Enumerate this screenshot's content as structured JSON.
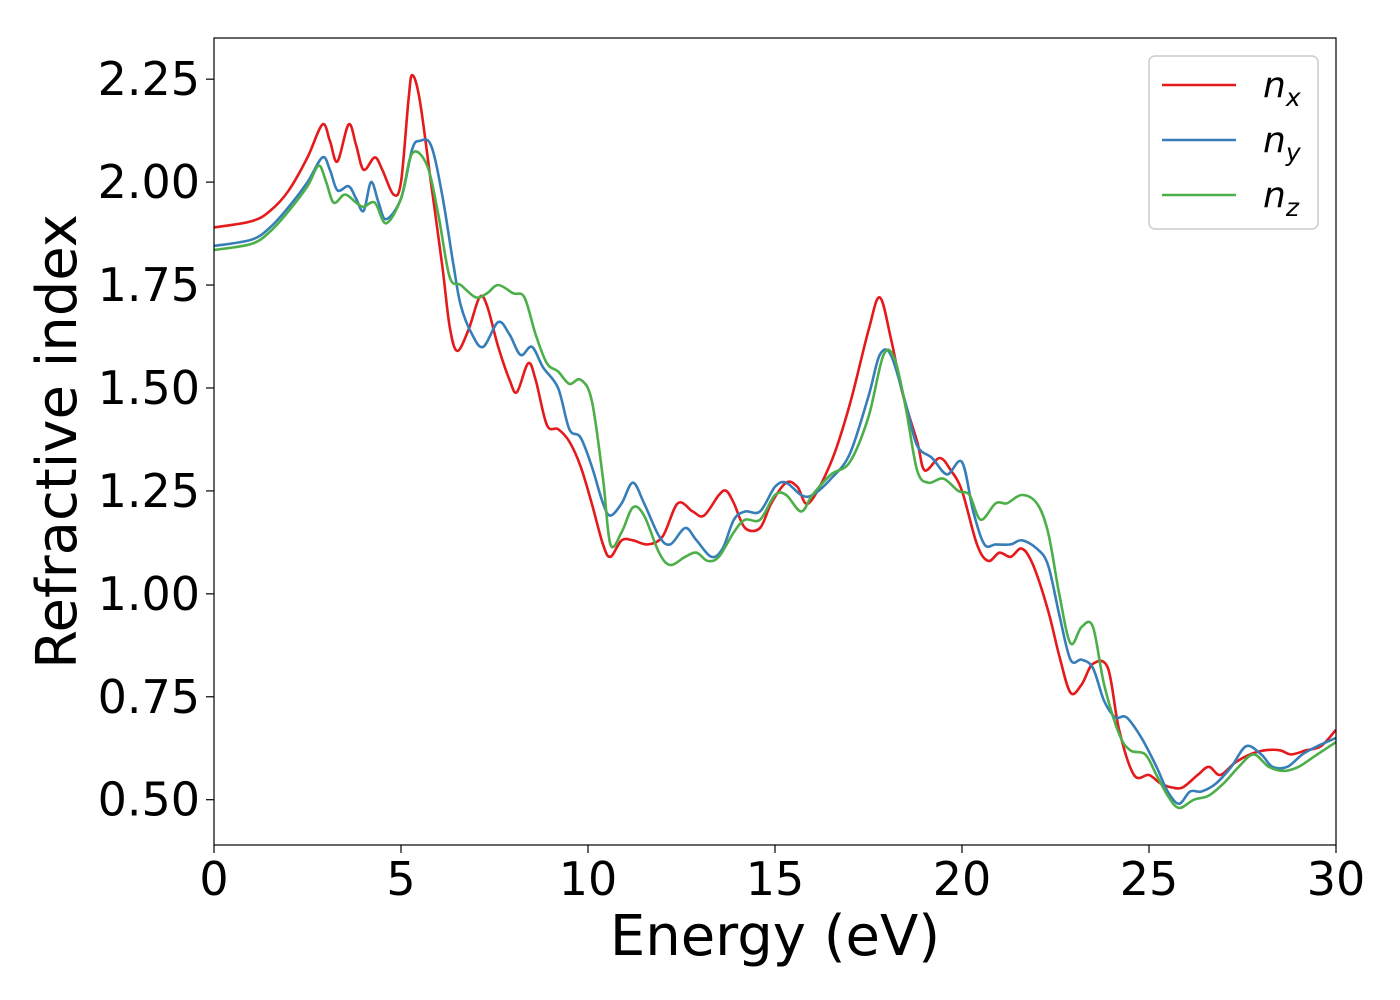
{
  "chart_data": {
    "type": "line",
    "title": "",
    "xlabel": "Energy (eV)",
    "ylabel": "Refractive index",
    "xlim": [
      0,
      30
    ],
    "ylim": [
      0.39,
      2.35
    ],
    "xticks": [
      0,
      5,
      10,
      15,
      20,
      25,
      30
    ],
    "yticks": [
      0.5,
      0.75,
      1.0,
      1.25,
      1.5,
      1.75,
      2.0,
      2.25
    ],
    "xtick_labels": [
      "0",
      "5",
      "10",
      "15",
      "20",
      "25",
      "30"
    ],
    "ytick_labels": [
      "0.50",
      "0.75",
      "1.00",
      "1.25",
      "1.50",
      "1.75",
      "2.00",
      "2.25"
    ],
    "grid": false,
    "legend_position": "top-right",
    "series": [
      {
        "name": "n",
        "subscript": "x",
        "color": "#e41a1c",
        "points": [
          [
            0,
            1.89
          ],
          [
            1,
            1.905
          ],
          [
            1.5,
            1.93
          ],
          [
            2,
            1.98
          ],
          [
            2.5,
            2.06
          ],
          [
            2.9,
            2.14
          ],
          [
            3.1,
            2.1
          ],
          [
            3.3,
            2.05
          ],
          [
            3.6,
            2.14
          ],
          [
            3.8,
            2.09
          ],
          [
            4.0,
            2.03
          ],
          [
            4.3,
            2.06
          ],
          [
            4.5,
            2.03
          ],
          [
            4.8,
            1.97
          ],
          [
            5.0,
            2.0
          ],
          [
            5.2,
            2.2
          ],
          [
            5.3,
            2.26
          ],
          [
            5.5,
            2.2
          ],
          [
            5.8,
            2.0
          ],
          [
            6.1,
            1.8
          ],
          [
            6.3,
            1.65
          ],
          [
            6.5,
            1.59
          ],
          [
            6.8,
            1.64
          ],
          [
            7.1,
            1.72
          ],
          [
            7.3,
            1.7
          ],
          [
            7.6,
            1.6
          ],
          [
            7.9,
            1.52
          ],
          [
            8.1,
            1.49
          ],
          [
            8.4,
            1.56
          ],
          [
            8.6,
            1.52
          ],
          [
            8.9,
            1.41
          ],
          [
            9.2,
            1.4
          ],
          [
            9.5,
            1.37
          ],
          [
            9.8,
            1.31
          ],
          [
            10.1,
            1.22
          ],
          [
            10.4,
            1.12
          ],
          [
            10.6,
            1.09
          ],
          [
            10.9,
            1.13
          ],
          [
            11.2,
            1.13
          ],
          [
            11.6,
            1.12
          ],
          [
            12.0,
            1.14
          ],
          [
            12.4,
            1.22
          ],
          [
            12.8,
            1.2
          ],
          [
            13.1,
            1.19
          ],
          [
            13.5,
            1.24
          ],
          [
            13.7,
            1.25
          ],
          [
            13.9,
            1.22
          ],
          [
            14.2,
            1.16
          ],
          [
            14.6,
            1.16
          ],
          [
            14.9,
            1.22
          ],
          [
            15.3,
            1.27
          ],
          [
            15.6,
            1.26
          ],
          [
            15.9,
            1.22
          ],
          [
            16.5,
            1.32
          ],
          [
            17.0,
            1.46
          ],
          [
            17.5,
            1.64
          ],
          [
            17.8,
            1.72
          ],
          [
            18.1,
            1.62
          ],
          [
            18.4,
            1.49
          ],
          [
            18.8,
            1.37
          ],
          [
            19.0,
            1.3
          ],
          [
            19.4,
            1.33
          ],
          [
            19.7,
            1.3
          ],
          [
            20.0,
            1.25
          ],
          [
            20.4,
            1.12
          ],
          [
            20.7,
            1.08
          ],
          [
            21.0,
            1.1
          ],
          [
            21.3,
            1.09
          ],
          [
            21.6,
            1.11
          ],
          [
            21.9,
            1.07
          ],
          [
            22.3,
            0.96
          ],
          [
            22.6,
            0.85
          ],
          [
            22.9,
            0.76
          ],
          [
            23.2,
            0.78
          ],
          [
            23.5,
            0.83
          ],
          [
            23.9,
            0.82
          ],
          [
            24.2,
            0.67
          ],
          [
            24.6,
            0.56
          ],
          [
            25.0,
            0.56
          ],
          [
            25.3,
            0.54
          ],
          [
            25.6,
            0.53
          ],
          [
            25.9,
            0.53
          ],
          [
            26.3,
            0.56
          ],
          [
            26.6,
            0.58
          ],
          [
            26.9,
            0.56
          ],
          [
            27.3,
            0.59
          ],
          [
            27.7,
            0.61
          ],
          [
            28.1,
            0.62
          ],
          [
            28.5,
            0.62
          ],
          [
            28.8,
            0.61
          ],
          [
            29.2,
            0.62
          ],
          [
            29.6,
            0.63
          ],
          [
            30,
            0.67
          ]
        ]
      },
      {
        "name": "n",
        "subscript": "y",
        "color": "#377eb8",
        "points": [
          [
            0,
            1.845
          ],
          [
            1,
            1.86
          ],
          [
            1.5,
            1.89
          ],
          [
            2,
            1.94
          ],
          [
            2.5,
            2.0
          ],
          [
            2.9,
            2.06
          ],
          [
            3.1,
            2.03
          ],
          [
            3.3,
            1.98
          ],
          [
            3.6,
            1.99
          ],
          [
            3.8,
            1.96
          ],
          [
            4.0,
            1.93
          ],
          [
            4.2,
            2.0
          ],
          [
            4.4,
            1.95
          ],
          [
            4.6,
            1.91
          ],
          [
            5.0,
            1.96
          ],
          [
            5.3,
            2.08
          ],
          [
            5.5,
            2.1
          ],
          [
            5.8,
            2.09
          ],
          [
            6.1,
            1.97
          ],
          [
            6.4,
            1.8
          ],
          [
            6.6,
            1.7
          ],
          [
            6.9,
            1.63
          ],
          [
            7.2,
            1.6
          ],
          [
            7.6,
            1.66
          ],
          [
            7.9,
            1.63
          ],
          [
            8.2,
            1.58
          ],
          [
            8.5,
            1.6
          ],
          [
            8.8,
            1.55
          ],
          [
            9.2,
            1.5
          ],
          [
            9.5,
            1.4
          ],
          [
            9.8,
            1.38
          ],
          [
            10.1,
            1.31
          ],
          [
            10.4,
            1.22
          ],
          [
            10.6,
            1.19
          ],
          [
            10.9,
            1.22
          ],
          [
            11.2,
            1.27
          ],
          [
            11.5,
            1.22
          ],
          [
            11.9,
            1.14
          ],
          [
            12.2,
            1.12
          ],
          [
            12.6,
            1.16
          ],
          [
            12.9,
            1.13
          ],
          [
            13.3,
            1.09
          ],
          [
            13.6,
            1.11
          ],
          [
            13.9,
            1.18
          ],
          [
            14.2,
            1.2
          ],
          [
            14.6,
            1.2
          ],
          [
            15.0,
            1.26
          ],
          [
            15.3,
            1.27
          ],
          [
            15.7,
            1.24
          ],
          [
            16.0,
            1.24
          ],
          [
            16.5,
            1.28
          ],
          [
            17.0,
            1.34
          ],
          [
            17.5,
            1.48
          ],
          [
            17.8,
            1.58
          ],
          [
            18.1,
            1.58
          ],
          [
            18.5,
            1.46
          ],
          [
            18.8,
            1.36
          ],
          [
            19.2,
            1.33
          ],
          [
            19.6,
            1.29
          ],
          [
            20.0,
            1.32
          ],
          [
            20.3,
            1.2
          ],
          [
            20.6,
            1.12
          ],
          [
            20.9,
            1.12
          ],
          [
            21.3,
            1.12
          ],
          [
            21.6,
            1.13
          ],
          [
            22.0,
            1.11
          ],
          [
            22.3,
            1.07
          ],
          [
            22.6,
            0.95
          ],
          [
            22.9,
            0.84
          ],
          [
            23.2,
            0.84
          ],
          [
            23.5,
            0.82
          ],
          [
            23.8,
            0.74
          ],
          [
            24.1,
            0.7
          ],
          [
            24.4,
            0.7
          ],
          [
            24.8,
            0.65
          ],
          [
            25.2,
            0.58
          ],
          [
            25.5,
            0.52
          ],
          [
            25.8,
            0.49
          ],
          [
            26.1,
            0.52
          ],
          [
            26.4,
            0.52
          ],
          [
            26.8,
            0.54
          ],
          [
            27.2,
            0.58
          ],
          [
            27.6,
            0.63
          ],
          [
            28.0,
            0.61
          ],
          [
            28.3,
            0.58
          ],
          [
            28.7,
            0.58
          ],
          [
            29.1,
            0.61
          ],
          [
            29.5,
            0.63
          ],
          [
            30,
            0.65
          ]
        ]
      },
      {
        "name": "n",
        "subscript": "z",
        "color": "#4daf4a",
        "points": [
          [
            0,
            1.835
          ],
          [
            1,
            1.85
          ],
          [
            1.5,
            1.88
          ],
          [
            2,
            1.93
          ],
          [
            2.5,
            1.99
          ],
          [
            2.8,
            2.04
          ],
          [
            3.0,
            2.0
          ],
          [
            3.2,
            1.95
          ],
          [
            3.5,
            1.97
          ],
          [
            3.8,
            1.95
          ],
          [
            4.0,
            1.94
          ],
          [
            4.3,
            1.95
          ],
          [
            4.6,
            1.9
          ],
          [
            5.0,
            1.96
          ],
          [
            5.3,
            2.07
          ],
          [
            5.7,
            2.04
          ],
          [
            6.0,
            1.92
          ],
          [
            6.3,
            1.77
          ],
          [
            6.6,
            1.75
          ],
          [
            7.0,
            1.72
          ],
          [
            7.3,
            1.73
          ],
          [
            7.6,
            1.75
          ],
          [
            8.0,
            1.73
          ],
          [
            8.3,
            1.72
          ],
          [
            8.6,
            1.63
          ],
          [
            8.9,
            1.56
          ],
          [
            9.2,
            1.54
          ],
          [
            9.5,
            1.51
          ],
          [
            9.8,
            1.52
          ],
          [
            10.1,
            1.47
          ],
          [
            10.4,
            1.28
          ],
          [
            10.6,
            1.12
          ],
          [
            10.9,
            1.15
          ],
          [
            11.2,
            1.21
          ],
          [
            11.5,
            1.19
          ],
          [
            11.9,
            1.1
          ],
          [
            12.2,
            1.07
          ],
          [
            12.6,
            1.09
          ],
          [
            12.9,
            1.1
          ],
          [
            13.2,
            1.08
          ],
          [
            13.5,
            1.09
          ],
          [
            13.9,
            1.15
          ],
          [
            14.2,
            1.18
          ],
          [
            14.6,
            1.18
          ],
          [
            15.0,
            1.24
          ],
          [
            15.3,
            1.24
          ],
          [
            15.7,
            1.2
          ],
          [
            16.0,
            1.24
          ],
          [
            16.5,
            1.29
          ],
          [
            17.0,
            1.32
          ],
          [
            17.5,
            1.43
          ],
          [
            17.9,
            1.58
          ],
          [
            18.2,
            1.57
          ],
          [
            18.5,
            1.45
          ],
          [
            18.8,
            1.3
          ],
          [
            19.1,
            1.27
          ],
          [
            19.5,
            1.28
          ],
          [
            19.9,
            1.25
          ],
          [
            20.2,
            1.24
          ],
          [
            20.5,
            1.18
          ],
          [
            20.9,
            1.22
          ],
          [
            21.2,
            1.22
          ],
          [
            21.6,
            1.24
          ],
          [
            22.0,
            1.22
          ],
          [
            22.3,
            1.15
          ],
          [
            22.6,
            1.0
          ],
          [
            22.9,
            0.88
          ],
          [
            23.2,
            0.92
          ],
          [
            23.5,
            0.92
          ],
          [
            23.8,
            0.78
          ],
          [
            24.2,
            0.66
          ],
          [
            24.5,
            0.62
          ],
          [
            24.9,
            0.61
          ],
          [
            25.2,
            0.56
          ],
          [
            25.5,
            0.51
          ],
          [
            25.8,
            0.48
          ],
          [
            26.2,
            0.5
          ],
          [
            26.6,
            0.51
          ],
          [
            27.0,
            0.54
          ],
          [
            27.4,
            0.58
          ],
          [
            27.8,
            0.61
          ],
          [
            28.2,
            0.58
          ],
          [
            28.6,
            0.57
          ],
          [
            29.0,
            0.58
          ],
          [
            29.5,
            0.61
          ],
          [
            30,
            0.64
          ]
        ]
      }
    ]
  }
}
